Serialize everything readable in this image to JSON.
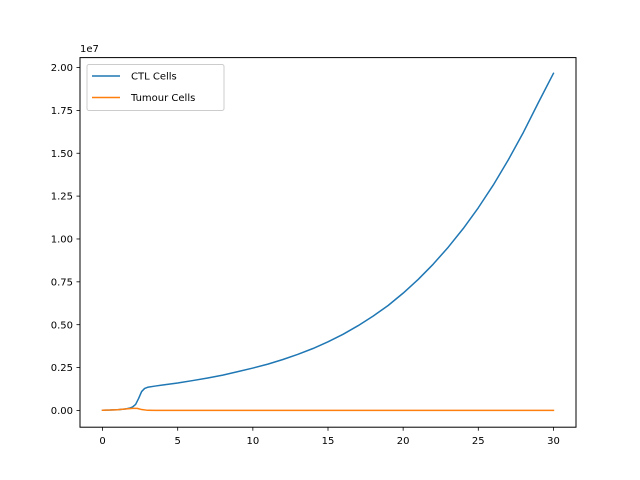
{
  "chart_data": {
    "type": "line",
    "title": "",
    "xlabel": "",
    "ylabel": "",
    "xlim": [
      -1.5,
      31.5
    ],
    "ylim": [
      -980000,
      20580000
    ],
    "y_offset_label": "1e7",
    "y_scale": 10000000,
    "xticks": [
      0,
      5,
      10,
      15,
      20,
      25,
      30
    ],
    "yticks": [
      0.0,
      0.25,
      0.5,
      0.75,
      1.0,
      1.25,
      1.5,
      1.75,
      2.0
    ],
    "yticklabels": [
      "0.00",
      "0.25",
      "0.50",
      "0.75",
      "1.00",
      "1.25",
      "1.50",
      "1.75",
      "2.00"
    ],
    "grid": false,
    "legend_position": "upper left",
    "series": [
      {
        "name": "CTL Cells",
        "color": "#1f77b4",
        "x": [
          0,
          0.5,
          1,
          1.5,
          1.8,
          2,
          2.2,
          2.4,
          2.6,
          2.8,
          3,
          3.5,
          4,
          5,
          6,
          7,
          8,
          9,
          10,
          11,
          12,
          13,
          14,
          15,
          16,
          17,
          18,
          19,
          20,
          21,
          22,
          23,
          24,
          25,
          26,
          27,
          28,
          29,
          30
        ],
        "y": [
          10000,
          20000,
          40000,
          80000,
          130000,
          200000,
          350000,
          700000,
          1100000,
          1280000,
          1350000,
          1420000,
          1480000,
          1600000,
          1740000,
          1890000,
          2060000,
          2260000,
          2470000,
          2700000,
          2970000,
          3270000,
          3610000,
          4000000,
          4440000,
          4940000,
          5500000,
          6120000,
          6840000,
          7640000,
          8530000,
          9520000,
          10610000,
          11820000,
          13150000,
          14620000,
          16220000,
          17960000,
          19660000
        ]
      },
      {
        "name": "Tumour Cells",
        "color": "#ff7f0e",
        "x": [
          0,
          0.5,
          1,
          1.5,
          2,
          2.3,
          2.6,
          3,
          3.5,
          4,
          6,
          10,
          15,
          20,
          25,
          30
        ],
        "y": [
          10000,
          20000,
          40000,
          80000,
          120000,
          120000,
          50000,
          5000,
          0,
          0,
          0,
          0,
          0,
          0,
          0,
          0
        ]
      }
    ]
  }
}
